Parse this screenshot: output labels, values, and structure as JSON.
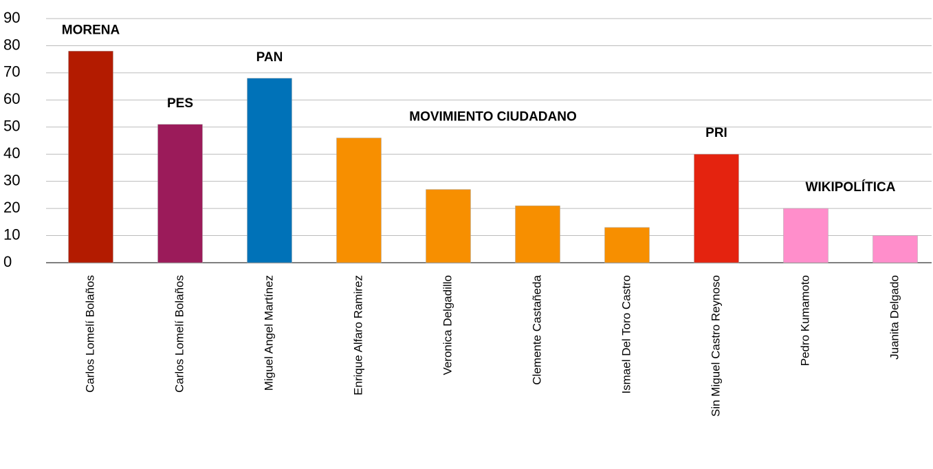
{
  "chart_data": {
    "type": "bar",
    "categories": [
      "Carlos Lomelí Bolaños",
      "Carlos Lomelí Bolaños",
      "Miguel Angel Martínez",
      "Enrique Alfaro Ramirez",
      "Veronica Delgadillo",
      "Clemente Castañeda",
      "Ismael Del Toro Castro",
      "Sin Miguel Castro Reynoso",
      "Pedro Kumamoto",
      "Juanita Delgado"
    ],
    "series": [
      {
        "name": "MORENA",
        "color": "#b31b00",
        "values": [
          78,
          null,
          null,
          null,
          null,
          null,
          null,
          null,
          null,
          null
        ]
      },
      {
        "name": "PES",
        "color": "#9b1b5a",
        "values": [
          null,
          51,
          null,
          null,
          null,
          null,
          null,
          null,
          null,
          null
        ]
      },
      {
        "name": "PAN",
        "color": "#0072b8",
        "values": [
          null,
          null,
          68,
          null,
          null,
          null,
          null,
          null,
          null,
          null
        ]
      },
      {
        "name": "MOVIMIENTO CIUDADANO",
        "color": "#f78f00",
        "values": [
          null,
          null,
          null,
          46,
          27,
          21,
          13,
          null,
          null,
          null
        ]
      },
      {
        "name": "PRI",
        "color": "#e4230f",
        "values": [
          null,
          null,
          null,
          null,
          null,
          null,
          null,
          40,
          null,
          null
        ]
      },
      {
        "name": "WIKIPOLÍTICA",
        "color": "#ff8ecb",
        "values": [
          null,
          null,
          null,
          null,
          null,
          null,
          null,
          null,
          20,
          10
        ]
      }
    ],
    "ylim": [
      0,
      90
    ],
    "yticks": [
      0,
      10,
      20,
      30,
      40,
      50,
      60,
      70,
      80,
      90
    ],
    "grid": true
  }
}
